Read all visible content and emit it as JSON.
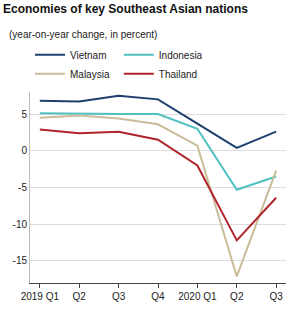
{
  "chart_data": {
    "type": "line",
    "title": "Economies of key Southeast Asian nations",
    "subtitle": "(year-on-year change, in percent)",
    "categories": [
      "2019 Q1",
      "Q2",
      "Q3",
      "Q4",
      "2020 Q1",
      "Q2",
      "Q3"
    ],
    "series": [
      {
        "name": "Vietnam",
        "color": "#1f3f6e",
        "values": [
          6.8,
          6.7,
          7.5,
          7.0,
          3.7,
          0.4,
          2.6
        ]
      },
      {
        "name": "Indonesia",
        "color": "#4fc1c0",
        "values": [
          5.1,
          5.0,
          5.0,
          5.0,
          3.0,
          -5.3,
          -3.5
        ]
      },
      {
        "name": "Malaysia",
        "color": "#cbbd9b",
        "values": [
          4.5,
          4.8,
          4.4,
          3.6,
          0.7,
          -17.1,
          -2.7
        ]
      },
      {
        "name": "Thailand",
        "color": "#b0242c",
        "values": [
          2.9,
          2.4,
          2.6,
          1.5,
          -2.0,
          -12.2,
          -6.4
        ]
      }
    ],
    "ylim": [
      -18,
      8
    ],
    "yticks": [
      -15,
      -10,
      -5,
      0,
      5
    ],
    "grid": true,
    "legend": "top-left"
  }
}
